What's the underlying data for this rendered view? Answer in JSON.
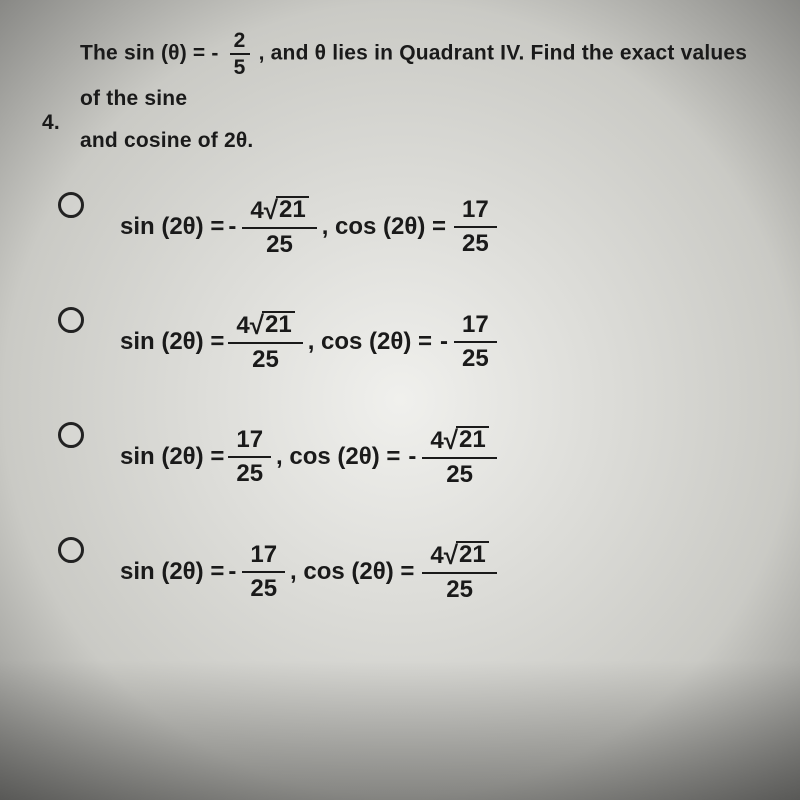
{
  "question": {
    "number": "4.",
    "line1_pre": "The sin (θ) = ",
    "given_frac": {
      "num": "2",
      "den": "5"
    },
    "line1_post": ", and θ lies in Quadrant IV. Find the exact values of the sine",
    "line2": "and cosine of 2θ."
  },
  "labels": {
    "sin2": "sin (2θ) = ",
    "cos2": ", cos (2θ) = "
  },
  "values": {
    "sqrt21": "21",
    "four": "4",
    "twentyfive": "25",
    "seventeen": "17",
    "minus": "-"
  },
  "options": [
    {
      "sin_neg": true,
      "sin_sqrt": true,
      "cos_neg": false,
      "cos_sqrt": false
    },
    {
      "sin_neg": false,
      "sin_sqrt": true,
      "cos_neg": true,
      "cos_sqrt": false
    },
    {
      "sin_neg": false,
      "sin_sqrt": false,
      "cos_neg": true,
      "cos_sqrt": true
    },
    {
      "sin_neg": true,
      "sin_sqrt": false,
      "cos_neg": false,
      "cos_sqrt": true
    }
  ],
  "style": {
    "text_color": "#1a1a1a",
    "radio_border": "#222222",
    "bg_center": "#f0f0ed",
    "bg_edge": "#888885"
  }
}
